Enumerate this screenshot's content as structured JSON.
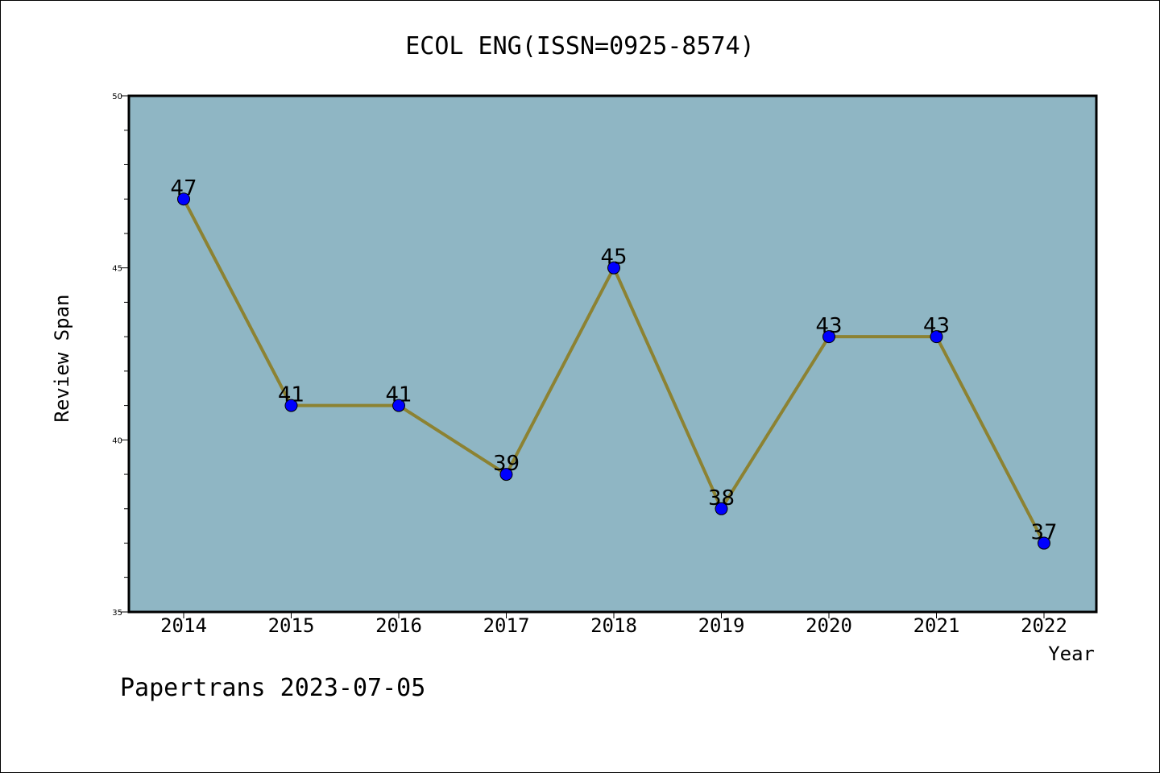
{
  "chart_data": {
    "type": "line",
    "title": "ECOL ENG(ISSN=0925-8574)",
    "xlabel": "Year",
    "ylabel": "Review Span",
    "categories": [
      "2014",
      "2015",
      "2016",
      "2017",
      "2018",
      "2019",
      "2020",
      "2021",
      "2022"
    ],
    "values": [
      47,
      41,
      41,
      39,
      45,
      38,
      43,
      43,
      37
    ],
    "data_labels": [
      "47",
      "41",
      "41",
      "39",
      "45",
      "38",
      "43",
      "43",
      "37"
    ],
    "ylim": [
      35,
      50
    ],
    "yticks": [
      "35",
      "40",
      "45",
      "50"
    ],
    "grid": false,
    "legend": "none",
    "colors": {
      "plot_background": "#8fb6c4",
      "line": "#8c8232",
      "marker": "#0000ff"
    }
  },
  "footer": {
    "text": "Papertrans 2023-07-05"
  }
}
